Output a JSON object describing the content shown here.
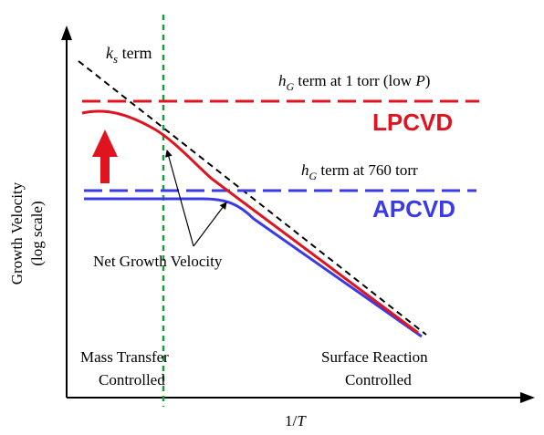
{
  "axes": {
    "y_label_line1": "Growth Velocity",
    "y_label_line2": "(log scale)",
    "x_label": "1/",
    "x_label_var": "T"
  },
  "labels": {
    "ks_k": "k",
    "ks_sub": "s",
    "ks_rest": " term",
    "hg_low_h": "h",
    "hg_low_sub": "G",
    "hg_low_rest": " term at 1 torr (low ",
    "hg_low_p": "P",
    "hg_low_close": ")",
    "hg_atm_h": "h",
    "hg_atm_sub": "G",
    "hg_atm_rest": " term at 760 torr",
    "lpcvd": "LPCVD",
    "apcvd": "APCVD",
    "net_growth": "Net Growth Velocity",
    "mass_transfer_line1": "Mass Transfer",
    "mass_transfer_line2": "Controlled",
    "surface_reaction_line1": "Surface Reaction",
    "surface_reaction_line2": "Controlled"
  },
  "colors": {
    "lpcvd": "#e0141e",
    "apcvd": "#3a3ae6",
    "ks_line": "#000000",
    "marker_line": "#1a9a3a",
    "axis": "#000000"
  }
}
